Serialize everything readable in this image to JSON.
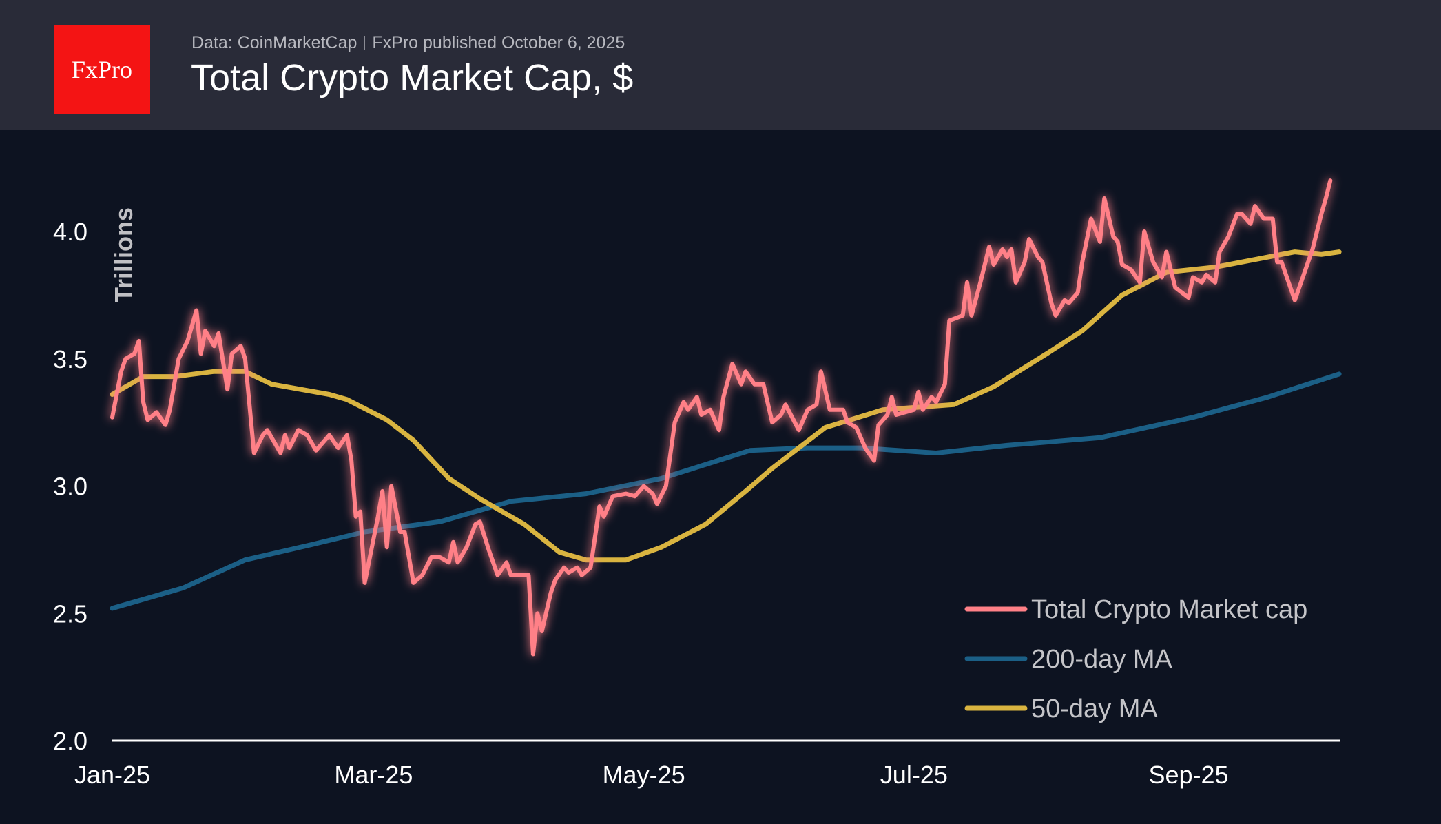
{
  "header": {
    "logo_text": "FxPro",
    "source": "Data: CoinMarketCap",
    "published": "FxPro published October 6, 2025",
    "title": "Total Crypto Market Cap, $"
  },
  "chart_data": {
    "type": "line",
    "title": "Total Crypto Market Cap, $",
    "ylabel": "Trillions",
    "xlabel": "",
    "ylim": [
      2.0,
      4.2
    ],
    "yticks": [
      "2.0",
      "2.5",
      "3.0",
      "3.5",
      "4.0"
    ],
    "xticks": [
      {
        "label": "Jan-25",
        "date": "2025-01-01"
      },
      {
        "label": "Mar-25",
        "date": "2025-03-01"
      },
      {
        "label": "May-25",
        "date": "2025-05-01"
      },
      {
        "label": "Jul-25",
        "date": "2025-07-01"
      },
      {
        "label": "Sep-25",
        "date": "2025-09-01"
      }
    ],
    "grid": false,
    "legend_position": "bottom-right",
    "series": [
      {
        "name": "Total Crypto Market cap",
        "color": "#ff8087",
        "points": [
          [
            "2025-01-01",
            3.27
          ],
          [
            "2025-01-03",
            3.45
          ],
          [
            "2025-01-04",
            3.5
          ],
          [
            "2025-01-06",
            3.52
          ],
          [
            "2025-01-07",
            3.57
          ],
          [
            "2025-01-08",
            3.33
          ],
          [
            "2025-01-09",
            3.26
          ],
          [
            "2025-01-11",
            3.29
          ],
          [
            "2025-01-13",
            3.24
          ],
          [
            "2025-01-14",
            3.3
          ],
          [
            "2025-01-16",
            3.5
          ],
          [
            "2025-01-18",
            3.57
          ],
          [
            "2025-01-20",
            3.69
          ],
          [
            "2025-01-21",
            3.52
          ],
          [
            "2025-01-22",
            3.61
          ],
          [
            "2025-01-24",
            3.55
          ],
          [
            "2025-01-25",
            3.6
          ],
          [
            "2025-01-27",
            3.38
          ],
          [
            "2025-01-28",
            3.52
          ],
          [
            "2025-01-30",
            3.55
          ],
          [
            "2025-01-31",
            3.5
          ],
          [
            "2025-02-02",
            3.13
          ],
          [
            "2025-02-04",
            3.2
          ],
          [
            "2025-02-05",
            3.22
          ],
          [
            "2025-02-08",
            3.13
          ],
          [
            "2025-02-09",
            3.2
          ],
          [
            "2025-02-10",
            3.15
          ],
          [
            "2025-02-12",
            3.22
          ],
          [
            "2025-02-14",
            3.2
          ],
          [
            "2025-02-16",
            3.14
          ],
          [
            "2025-02-19",
            3.2
          ],
          [
            "2025-02-21",
            3.15
          ],
          [
            "2025-02-23",
            3.2
          ],
          [
            "2025-02-24",
            3.1
          ],
          [
            "2025-02-25",
            2.88
          ],
          [
            "2025-02-26",
            2.9
          ],
          [
            "2025-02-27",
            2.62
          ],
          [
            "2025-03-02",
            2.88
          ],
          [
            "2025-03-03",
            2.98
          ],
          [
            "2025-03-04",
            2.76
          ],
          [
            "2025-03-05",
            3.0
          ],
          [
            "2025-03-07",
            2.82
          ],
          [
            "2025-03-08",
            2.82
          ],
          [
            "2025-03-10",
            2.62
          ],
          [
            "2025-03-12",
            2.65
          ],
          [
            "2025-03-14",
            2.72
          ],
          [
            "2025-03-16",
            2.72
          ],
          [
            "2025-03-18",
            2.7
          ],
          [
            "2025-03-19",
            2.78
          ],
          [
            "2025-03-20",
            2.7
          ],
          [
            "2025-03-22",
            2.76
          ],
          [
            "2025-03-24",
            2.85
          ],
          [
            "2025-03-25",
            2.86
          ],
          [
            "2025-03-27",
            2.75
          ],
          [
            "2025-03-29",
            2.65
          ],
          [
            "2025-03-31",
            2.7
          ],
          [
            "2025-04-01",
            2.65
          ],
          [
            "2025-04-05",
            2.65
          ],
          [
            "2025-04-06",
            2.34
          ],
          [
            "2025-04-07",
            2.5
          ],
          [
            "2025-04-08",
            2.43
          ],
          [
            "2025-04-10",
            2.58
          ],
          [
            "2025-04-11",
            2.63
          ],
          [
            "2025-04-13",
            2.68
          ],
          [
            "2025-04-14",
            2.66
          ],
          [
            "2025-04-16",
            2.68
          ],
          [
            "2025-04-17",
            2.65
          ],
          [
            "2025-04-19",
            2.68
          ],
          [
            "2025-04-21",
            2.92
          ],
          [
            "2025-04-22",
            2.88
          ],
          [
            "2025-04-24",
            2.96
          ],
          [
            "2025-04-27",
            2.97
          ],
          [
            "2025-04-29",
            2.96
          ],
          [
            "2025-05-01",
            3.0
          ],
          [
            "2025-05-03",
            2.97
          ],
          [
            "2025-05-04",
            2.93
          ],
          [
            "2025-05-06",
            3.0
          ],
          [
            "2025-05-08",
            3.25
          ],
          [
            "2025-05-10",
            3.33
          ],
          [
            "2025-05-11",
            3.3
          ],
          [
            "2025-05-13",
            3.35
          ],
          [
            "2025-05-14",
            3.28
          ],
          [
            "2025-05-16",
            3.3
          ],
          [
            "2025-05-18",
            3.22
          ],
          [
            "2025-05-19",
            3.35
          ],
          [
            "2025-05-21",
            3.48
          ],
          [
            "2025-05-23",
            3.4
          ],
          [
            "2025-05-24",
            3.45
          ],
          [
            "2025-05-26",
            3.4
          ],
          [
            "2025-05-28",
            3.4
          ],
          [
            "2025-05-30",
            3.25
          ],
          [
            "2025-06-01",
            3.28
          ],
          [
            "2025-06-02",
            3.32
          ],
          [
            "2025-06-05",
            3.22
          ],
          [
            "2025-06-07",
            3.3
          ],
          [
            "2025-06-09",
            3.32
          ],
          [
            "2025-06-10",
            3.45
          ],
          [
            "2025-06-12",
            3.3
          ],
          [
            "2025-06-15",
            3.3
          ],
          [
            "2025-06-16",
            3.25
          ],
          [
            "2025-06-18",
            3.23
          ],
          [
            "2025-06-20",
            3.15
          ],
          [
            "2025-06-22",
            3.1
          ],
          [
            "2025-06-23",
            3.24
          ],
          [
            "2025-06-25",
            3.28
          ],
          [
            "2025-06-26",
            3.35
          ],
          [
            "2025-06-27",
            3.28
          ],
          [
            "2025-07-01",
            3.3
          ],
          [
            "2025-07-02",
            3.37
          ],
          [
            "2025-07-03",
            3.3
          ],
          [
            "2025-07-05",
            3.35
          ],
          [
            "2025-07-06",
            3.33
          ],
          [
            "2025-07-08",
            3.4
          ],
          [
            "2025-07-09",
            3.65
          ],
          [
            "2025-07-12",
            3.67
          ],
          [
            "2025-07-13",
            3.8
          ],
          [
            "2025-07-14",
            3.67
          ],
          [
            "2025-07-16",
            3.8
          ],
          [
            "2025-07-18",
            3.94
          ],
          [
            "2025-07-19",
            3.87
          ],
          [
            "2025-07-21",
            3.93
          ],
          [
            "2025-07-22",
            3.9
          ],
          [
            "2025-07-23",
            3.93
          ],
          [
            "2025-07-24",
            3.8
          ],
          [
            "2025-07-26",
            3.88
          ],
          [
            "2025-07-27",
            3.97
          ],
          [
            "2025-07-29",
            3.9
          ],
          [
            "2025-07-30",
            3.88
          ],
          [
            "2025-08-01",
            3.72
          ],
          [
            "2025-08-02",
            3.67
          ],
          [
            "2025-08-04",
            3.73
          ],
          [
            "2025-08-05",
            3.72
          ],
          [
            "2025-08-07",
            3.76
          ],
          [
            "2025-08-08",
            3.88
          ],
          [
            "2025-08-10",
            4.05
          ],
          [
            "2025-08-12",
            3.96
          ],
          [
            "2025-08-13",
            4.13
          ],
          [
            "2025-08-15",
            3.98
          ],
          [
            "2025-08-16",
            3.96
          ],
          [
            "2025-08-17",
            3.87
          ],
          [
            "2025-08-19",
            3.85
          ],
          [
            "2025-08-21",
            3.8
          ],
          [
            "2025-08-22",
            4.0
          ],
          [
            "2025-08-24",
            3.88
          ],
          [
            "2025-08-26",
            3.82
          ],
          [
            "2025-08-27",
            3.92
          ],
          [
            "2025-08-29",
            3.78
          ],
          [
            "2025-09-01",
            3.74
          ],
          [
            "2025-09-02",
            3.82
          ],
          [
            "2025-09-04",
            3.8
          ],
          [
            "2025-09-05",
            3.83
          ],
          [
            "2025-09-07",
            3.8
          ],
          [
            "2025-09-08",
            3.92
          ],
          [
            "2025-09-10",
            3.98
          ],
          [
            "2025-09-12",
            4.07
          ],
          [
            "2025-09-13",
            4.07
          ],
          [
            "2025-09-15",
            4.03
          ],
          [
            "2025-09-16",
            4.1
          ],
          [
            "2025-09-18",
            4.05
          ],
          [
            "2025-09-20",
            4.05
          ],
          [
            "2025-09-21",
            3.88
          ],
          [
            "2025-09-22",
            3.88
          ],
          [
            "2025-09-25",
            3.73
          ],
          [
            "2025-09-26",
            3.78
          ],
          [
            "2025-09-28",
            3.88
          ],
          [
            "2025-09-29",
            3.93
          ],
          [
            "2025-10-01",
            4.07
          ],
          [
            "2025-10-02",
            4.13
          ],
          [
            "2025-10-03",
            4.2
          ]
        ]
      },
      {
        "name": "200-day MA",
        "color": "#1b5f86",
        "points": [
          [
            "2025-01-01",
            2.52
          ],
          [
            "2025-01-17",
            2.6
          ],
          [
            "2025-01-31",
            2.71
          ],
          [
            "2025-02-15",
            2.77
          ],
          [
            "2025-02-27",
            2.82
          ],
          [
            "2025-03-16",
            2.86
          ],
          [
            "2025-04-01",
            2.94
          ],
          [
            "2025-04-18",
            2.97
          ],
          [
            "2025-05-05",
            3.03
          ],
          [
            "2025-05-25",
            3.14
          ],
          [
            "2025-06-07",
            3.15
          ],
          [
            "2025-06-19",
            3.15
          ],
          [
            "2025-07-06",
            3.13
          ],
          [
            "2025-07-22",
            3.16
          ],
          [
            "2025-08-12",
            3.19
          ],
          [
            "2025-09-02",
            3.27
          ],
          [
            "2025-09-19",
            3.35
          ],
          [
            "2025-10-05",
            3.44
          ]
        ]
      },
      {
        "name": "50-day MA",
        "color": "#d9b440",
        "points": [
          [
            "2025-01-01",
            3.36
          ],
          [
            "2025-01-08",
            3.43
          ],
          [
            "2025-01-15",
            3.43
          ],
          [
            "2025-01-24",
            3.45
          ],
          [
            "2025-01-31",
            3.45
          ],
          [
            "2025-02-06",
            3.4
          ],
          [
            "2025-02-19",
            3.36
          ],
          [
            "2025-02-23",
            3.34
          ],
          [
            "2025-03-04",
            3.26
          ],
          [
            "2025-03-10",
            3.18
          ],
          [
            "2025-03-18",
            3.03
          ],
          [
            "2025-03-25",
            2.95
          ],
          [
            "2025-04-04",
            2.85
          ],
          [
            "2025-04-12",
            2.74
          ],
          [
            "2025-04-18",
            2.71
          ],
          [
            "2025-04-27",
            2.71
          ],
          [
            "2025-05-05",
            2.76
          ],
          [
            "2025-05-15",
            2.85
          ],
          [
            "2025-05-24",
            2.98
          ],
          [
            "2025-05-30",
            3.07
          ],
          [
            "2025-06-11",
            3.23
          ],
          [
            "2025-06-24",
            3.3
          ],
          [
            "2025-07-10",
            3.32
          ],
          [
            "2025-07-19",
            3.39
          ],
          [
            "2025-07-31",
            3.52
          ],
          [
            "2025-08-08",
            3.61
          ],
          [
            "2025-08-17",
            3.75
          ],
          [
            "2025-08-27",
            3.84
          ],
          [
            "2025-09-07",
            3.86
          ],
          [
            "2025-09-19",
            3.9
          ],
          [
            "2025-09-25",
            3.92
          ],
          [
            "2025-10-01",
            3.91
          ],
          [
            "2025-10-05",
            3.92
          ]
        ]
      }
    ]
  }
}
